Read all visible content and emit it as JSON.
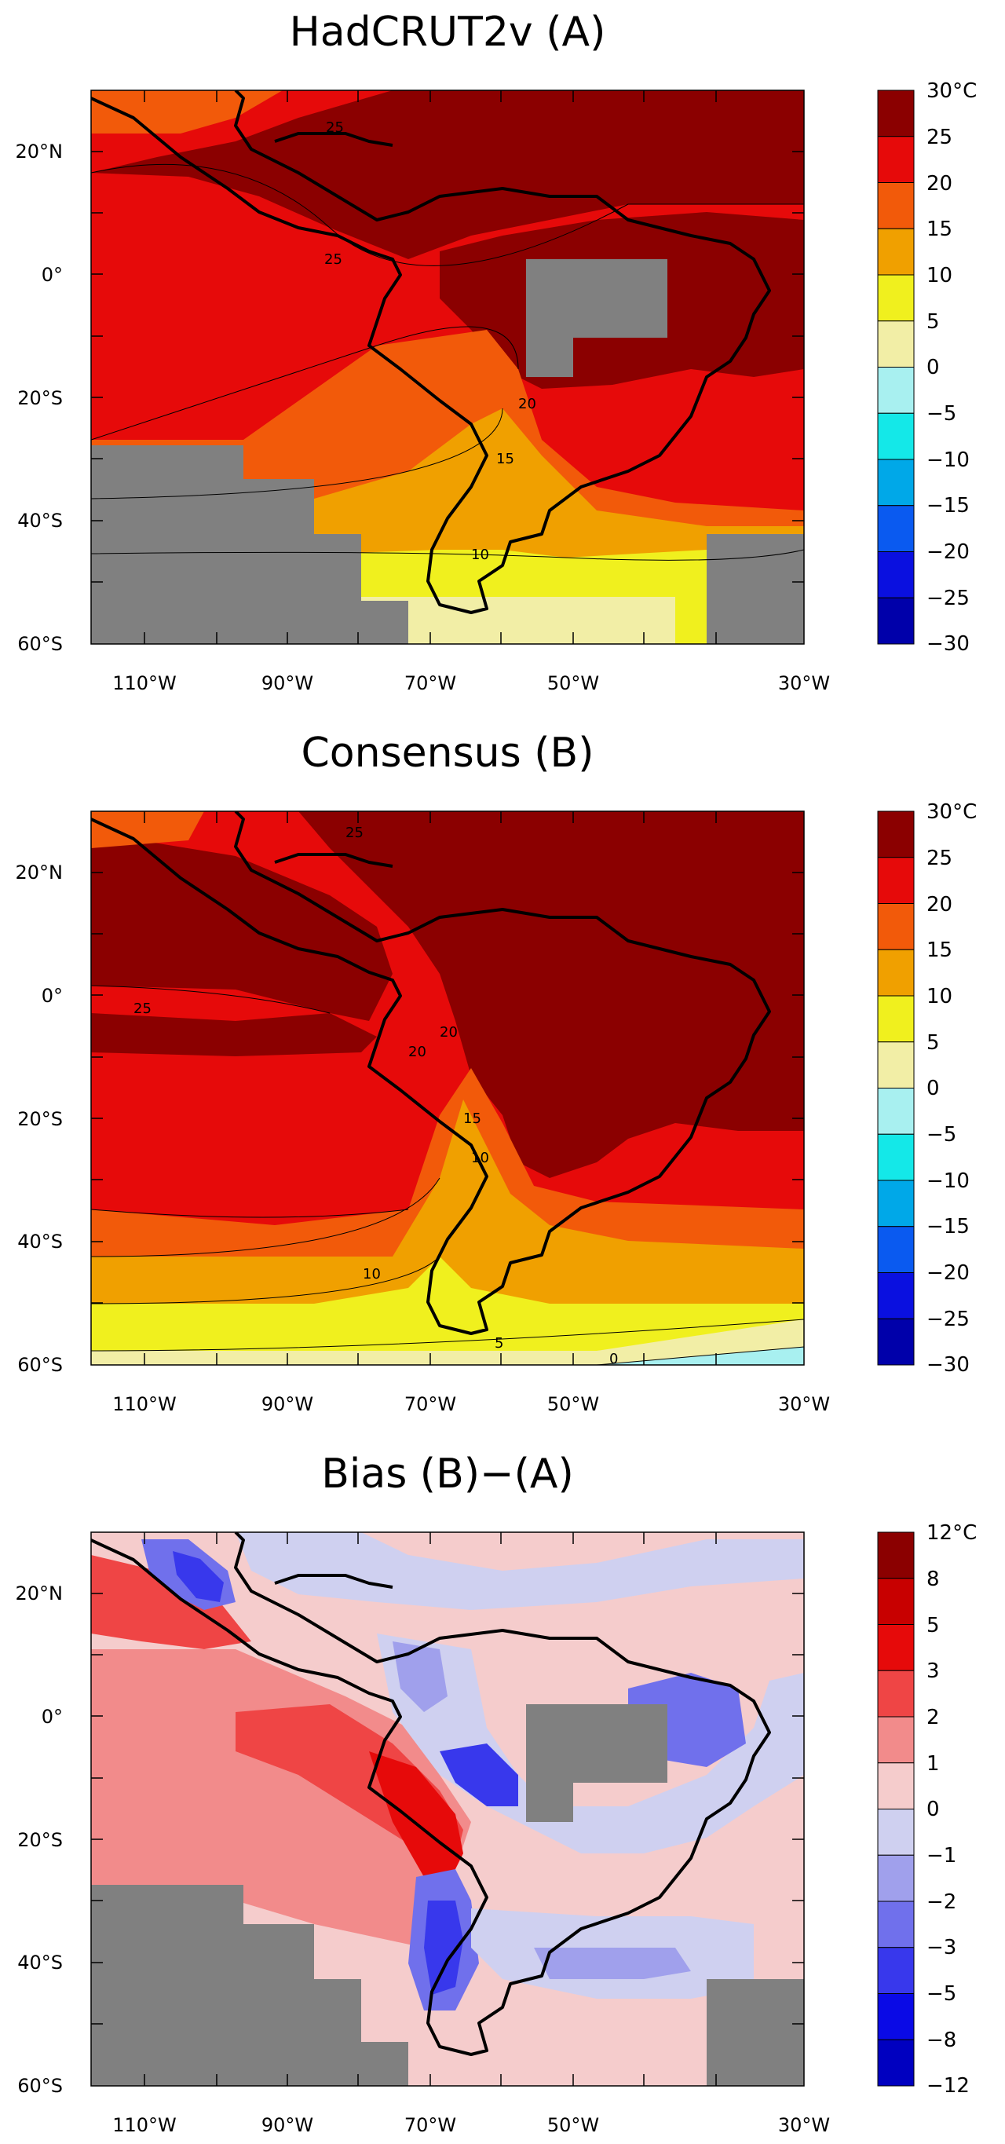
{
  "panels": [
    {
      "title": "HadCRUT2v (A)",
      "lat_labels": [
        "20°N",
        "0°",
        "20°S",
        "40°S",
        "60°S"
      ],
      "lon_labels": [
        "110°W",
        "90°W",
        "70°W",
        "50°W",
        "30°W"
      ],
      "colorbar": {
        "labels": [
          "30°C",
          "25",
          "20",
          "15",
          "10",
          "5",
          "0",
          "−5",
          "−10",
          "−15",
          "−20",
          "−25",
          "−30"
        ],
        "colors": [
          "#8b0000",
          "#e60a0a",
          "#f25a0a",
          "#f0a000",
          "#f0f01e",
          "#f2eea6",
          "#a8f0f0",
          "#14e8e8",
          "#00a8e8",
          "#0a5af0",
          "#0a10e0",
          "#0000aa",
          "#000080"
        ]
      },
      "contour_labels": [
        "25",
        "25",
        "20",
        "15",
        "10"
      ]
    },
    {
      "title": "Consensus (B)",
      "lat_labels": [
        "20°N",
        "0°",
        "20°S",
        "40°S",
        "60°S"
      ],
      "lon_labels": [
        "110°W",
        "90°W",
        "70°W",
        "50°W",
        "30°W"
      ],
      "colorbar": {
        "labels": [
          "30°C",
          "25",
          "20",
          "15",
          "10",
          "5",
          "0",
          "−5",
          "−10",
          "−15",
          "−20",
          "−25",
          "−30"
        ],
        "colors": [
          "#8b0000",
          "#e60a0a",
          "#f25a0a",
          "#f0a000",
          "#f0f01e",
          "#f2eea6",
          "#a8f0f0",
          "#14e8e8",
          "#00a8e8",
          "#0a5af0",
          "#0a10e0",
          "#0000aa",
          "#000080"
        ]
      },
      "contour_labels": [
        "25",
        "25",
        "20",
        "20",
        "15",
        "10",
        "10",
        "5",
        "0"
      ]
    },
    {
      "title": "Bias (B)−(A)",
      "lat_labels": [
        "20°N",
        "0°",
        "20°S",
        "40°S",
        "60°S"
      ],
      "lon_labels": [
        "110°W",
        "90°W",
        "70°W",
        "50°W",
        "30°W"
      ],
      "colorbar": {
        "labels": [
          "12°C",
          "8",
          "5",
          "3",
          "2",
          "1",
          "0",
          "−1",
          "−2",
          "−3",
          "−5",
          "−8",
          "−12"
        ],
        "colors": [
          "#8b0000",
          "#c80000",
          "#e60a0a",
          "#ef4545",
          "#f28b8b",
          "#f5cccc",
          "#cfd0f0",
          "#a0a0ec",
          "#7070ec",
          "#3838ec",
          "#0a0ae6",
          "#0000c0",
          "#000090"
        ]
      },
      "contour_labels": []
    }
  ]
}
